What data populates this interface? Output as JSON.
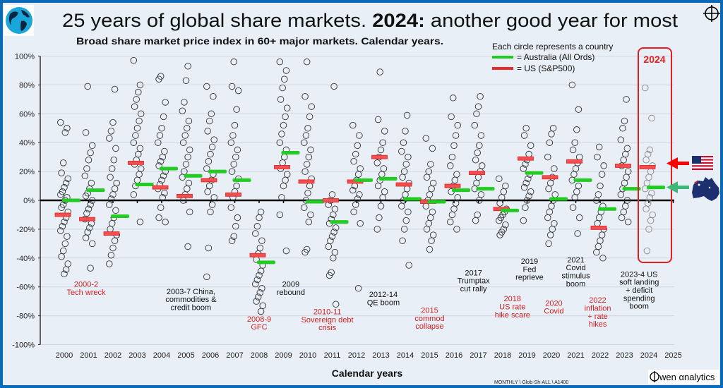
{
  "title": {
    "part1": "25 years of global share markets.",
    "part2": "2024:",
    "part3": "another good year for most"
  },
  "subtitle": "Broad share market price index in 60+ major markets. Calendar years.",
  "legend": {
    "heading": "Each circle represents a country",
    "australia": "= Australia (All Ords)",
    "us": "= US (S&P500)"
  },
  "highlight_label": "2024",
  "footer": {
    "source_code": "MONTHLY \\ Glob-Sh-ALL \\  A1400",
    "brand": "wen αnalytics"
  },
  "colors": {
    "australia": "#22cc22",
    "us": "#e82a2a",
    "annotation_red": "#d02020",
    "frame": "#0a6ab8",
    "background": "#e9eff7"
  },
  "icons": [
    "globe-logo-icon",
    "crosshair-icon",
    "us-flag-icon",
    "australia-map-icon",
    "red-arrow-icon",
    "green-arrow-icon",
    "owen-logo-icon"
  ],
  "chart_data": {
    "type": "scatter",
    "xlabel": "Calendar years",
    "ylabel": "",
    "ylim": [
      -100,
      100
    ],
    "ytick_labels": [
      "100%",
      "80%",
      "60%",
      "40%",
      "20%",
      "0%",
      "-20%",
      "-40%",
      "-60%",
      "-80%",
      "-100%"
    ],
    "yticks": [
      100,
      80,
      60,
      40,
      20,
      0,
      -20,
      -40,
      -60,
      -80,
      -100
    ],
    "x_tick_labels": [
      "2000",
      "2001",
      "2002",
      "2003",
      "2004",
      "2005",
      "2006",
      "2007",
      "2008",
      "2009",
      "2010",
      "2011",
      "2012",
      "2013",
      "2014",
      "2015",
      "2016",
      "2017",
      "2018",
      "2019",
      "2020",
      "2021",
      "2022",
      "2023",
      "2024",
      "2025"
    ],
    "grid": true,
    "legend_placement": "top-right",
    "years": [
      2000,
      2001,
      2002,
      2003,
      2004,
      2005,
      2006,
      2007,
      2008,
      2009,
      2010,
      2011,
      2012,
      2013,
      2014,
      2015,
      2016,
      2017,
      2018,
      2019,
      2020,
      2021,
      2022,
      2023,
      2024
    ],
    "series": [
      {
        "name": "US (S&P500)",
        "marker": "red-bar",
        "values": [
          -10,
          -13,
          -23,
          26,
          9,
          3,
          14,
          4,
          -38,
          23,
          13,
          0,
          13,
          30,
          11,
          -1,
          10,
          19,
          -6,
          29,
          16,
          27,
          -19,
          24,
          23
        ]
      },
      {
        "name": "Australia (All Ords)",
        "marker": "green-bar",
        "values": [
          0,
          7,
          -11,
          11,
          22,
          17,
          20,
          14,
          -43,
          33,
          -1,
          -15,
          14,
          15,
          1,
          -1,
          7,
          8,
          -7,
          19,
          1,
          14,
          -6,
          8,
          9
        ]
      }
    ],
    "countries": [
      [
        54,
        50,
        47,
        26,
        19,
        15,
        12,
        9,
        6,
        4,
        2,
        0,
        -3,
        -5,
        -8,
        -12,
        -15,
        -18,
        -21,
        -25,
        -30,
        -35,
        -39,
        -44,
        -48,
        -51
      ],
      [
        79,
        47,
        38,
        33,
        28,
        22,
        17,
        12,
        8,
        5,
        3,
        0,
        -3,
        -6,
        -9,
        -13,
        -16,
        -19,
        -22,
        -26,
        -30,
        -47
      ],
      [
        77,
        54,
        48,
        43,
        36,
        28,
        22,
        16,
        12,
        8,
        4,
        1,
        -3,
        -7,
        -12,
        -16,
        -20,
        -24,
        -28,
        -33,
        -38,
        -44
      ],
      [
        97,
        80,
        75,
        70,
        65,
        60,
        55,
        50,
        45,
        40,
        36,
        32,
        28,
        25,
        22,
        18,
        14,
        10,
        4,
        -15
      ],
      [
        86,
        84,
        68,
        58,
        50,
        45,
        40,
        34,
        30,
        27,
        24,
        20,
        17,
        14,
        11,
        8,
        5,
        2,
        -5,
        -12,
        -15
      ],
      [
        93,
        83,
        68,
        62,
        55,
        50,
        45,
        40,
        35,
        30,
        25,
        20,
        16,
        12,
        8,
        4,
        0,
        -8,
        -32
      ],
      [
        79,
        72,
        60,
        55,
        48,
        42,
        37,
        32,
        27,
        22,
        18,
        14,
        10,
        6,
        2,
        -3,
        -8,
        -33,
        -53
      ],
      [
        96,
        79,
        76,
        63,
        52,
        45,
        40,
        35,
        30,
        25,
        20,
        15,
        10,
        6,
        2,
        -5,
        -12,
        -18,
        -25,
        -28
      ],
      [
        -8,
        -12,
        -18,
        -23,
        -28,
        -33,
        -37,
        -41,
        -45,
        -49,
        -52,
        -55,
        -58,
        -61,
        -64,
        -67,
        -70,
        -73,
        -77
      ],
      [
        96,
        90,
        84,
        78,
        70,
        64,
        58,
        52,
        46,
        40,
        35,
        30,
        26,
        22,
        18,
        14,
        10,
        2,
        -10,
        -35
      ],
      [
        96,
        72,
        65,
        58,
        50,
        45,
        40,
        35,
        30,
        25,
        20,
        15,
        10,
        5,
        0,
        -5,
        -10,
        -15,
        -34,
        -36
      ],
      [
        79,
        4,
        0,
        -3,
        -6,
        -10,
        -13,
        -16,
        -19,
        -22,
        -25,
        -28,
        -32,
        -36,
        -40,
        -50,
        -52,
        -72
      ],
      [
        52,
        45,
        38,
        32,
        27,
        22,
        18,
        14,
        10,
        7,
        4,
        1,
        -3,
        -8,
        -16,
        -61
      ],
      [
        89,
        56,
        48,
        40,
        35,
        30,
        26,
        22,
        18,
        14,
        10,
        6,
        2,
        -4,
        -12,
        -20
      ],
      [
        59,
        48,
        40,
        34,
        30,
        25,
        20,
        16,
        12,
        8,
        4,
        0,
        -4,
        -8,
        -14,
        -20,
        -28,
        -45
      ],
      [
        43,
        36,
        25,
        20,
        16,
        12,
        8,
        4,
        0,
        -4,
        -8,
        -12,
        -16,
        -20,
        -24,
        -28,
        -34
      ],
      [
        71,
        58,
        52,
        45,
        38,
        30,
        24,
        18,
        14,
        10,
        6,
        2,
        -2,
        -6,
        -10,
        -15,
        -20
      ],
      [
        72,
        65,
        60,
        52,
        45,
        38,
        33,
        28,
        24,
        20,
        16,
        12,
        8,
        4,
        0,
        -10,
        -14
      ],
      [
        15,
        10,
        6,
        2,
        -2,
        -6,
        -8,
        -10,
        -12,
        -14,
        -17,
        -20,
        -22,
        -24
      ],
      [
        50,
        45,
        38,
        32,
        28,
        25,
        22,
        18,
        15,
        12,
        9,
        6,
        3,
        0,
        -5,
        -14
      ],
      [
        50,
        46,
        40,
        30,
        22,
        16,
        12,
        8,
        4,
        0,
        -4,
        -8,
        -12,
        -16,
        -20,
        -24,
        -30
      ],
      [
        80,
        63,
        49,
        40,
        35,
        30,
        26,
        22,
        18,
        14,
        10,
        6,
        2,
        -5,
        -12,
        -23
      ],
      [
        37,
        30,
        24,
        18,
        10,
        4,
        0,
        -4,
        -8,
        -12,
        -16,
        -20,
        -24,
        -28,
        -32,
        -36,
        -40
      ],
      [
        70,
        55,
        50,
        42,
        36,
        32,
        28,
        24,
        20,
        16,
        12,
        8,
        4,
        0,
        -4,
        -8,
        -12,
        -15
      ],
      [
        78,
        57,
        35,
        32,
        28,
        24,
        20,
        16,
        12,
        8,
        5,
        2,
        -2,
        -6,
        -10,
        -14,
        -20,
        -35
      ]
    ],
    "annotations": [
      {
        "year": 2000.9,
        "lines": [
          "2000-2",
          "Tech wreck"
        ],
        "color": "red",
        "level": -60
      },
      {
        "year": 2005.2,
        "lines": [
          "2003-7 China,",
          "commodities &",
          "credit boom"
        ],
        "color": "black",
        "level": -65
      },
      {
        "year": 2008,
        "lines": [
          "2008-9",
          "GFC"
        ],
        "color": "red",
        "level": -84
      },
      {
        "year": 2009.3,
        "lines": [
          "2009",
          "rebound"
        ],
        "color": "black",
        "level": -60
      },
      {
        "year": 2010.8,
        "lines": [
          "2010-11",
          "Sovereign debt",
          "crisis"
        ],
        "color": "red",
        "level": -79
      },
      {
        "year": 2013.1,
        "lines": [
          "2012-14",
          "QE boom"
        ],
        "color": "black",
        "level": -67
      },
      {
        "year": 2015,
        "lines": [
          "2015",
          "commod",
          "collapse"
        ],
        "color": "red",
        "level": -78
      },
      {
        "year": 2016.8,
        "lines": [
          "2017",
          "Trumptax",
          "cut rally"
        ],
        "color": "black",
        "level": -52
      },
      {
        "year": 2018.4,
        "lines": [
          "2018",
          "US rate",
          "hike scare"
        ],
        "color": "red",
        "level": -70
      },
      {
        "year": 2019.1,
        "lines": [
          "2019",
          "Fed",
          "reprieve"
        ],
        "color": "black",
        "level": -44
      },
      {
        "year": 2020.1,
        "lines": [
          "2020",
          "Covid"
        ],
        "color": "red",
        "level": -73
      },
      {
        "year": 2021,
        "lines": [
          "2021",
          "Covid",
          "stimulus",
          "boom"
        ],
        "color": "black",
        "level": -43
      },
      {
        "year": 2021.9,
        "lines": [
          "2022",
          "inflation",
          "+ rate",
          "hikes"
        ],
        "color": "red",
        "level": -71
      },
      {
        "year": 2023.6,
        "lines": [
          "2023-4 US",
          "soft landing",
          "+ deficit",
          "spending",
          "boom"
        ],
        "color": "black",
        "level": -53
      }
    ]
  }
}
